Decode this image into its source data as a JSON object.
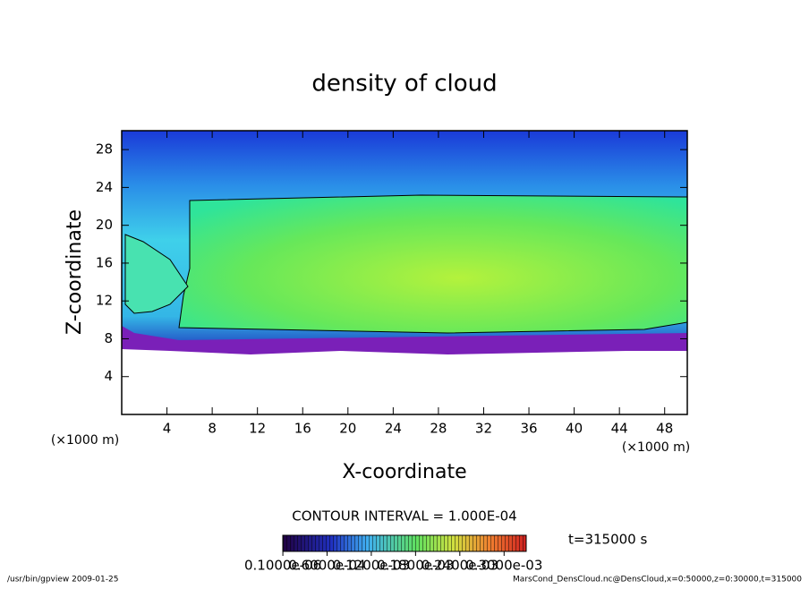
{
  "chart_data": {
    "type": "contour",
    "title": "density of cloud",
    "x_label": "X-coordinate",
    "y_label": "Z-coordinate",
    "x_unit": "(×1000 m)",
    "y_unit": "(×1000 m)",
    "xlim": [
      0,
      50
    ],
    "ylim": [
      0,
      30
    ],
    "xticks": [
      4,
      8,
      12,
      16,
      20,
      24,
      28,
      32,
      36,
      40,
      44,
      48
    ],
    "yticks": [
      4,
      8,
      12,
      16,
      20,
      24,
      28
    ],
    "contour_interval": "CONTOUR INTERVAL = 1.000E-04",
    "time": "t=315000 s",
    "colorbar": {
      "lim": [
        0,
        0.00033
      ],
      "ticks": [
        {
          "value": 1e-07,
          "label": "0.1000e-06"
        },
        {
          "value": 6e-05,
          "label": "0.6000e-04"
        },
        {
          "value": 0.00012,
          "label": "0.1200e-03"
        },
        {
          "value": 0.00018,
          "label": "0.1800e-03"
        },
        {
          "value": 0.00024,
          "label": "0.2400e-03"
        },
        {
          "value": 0.0003,
          "label": "0.3000e-03"
        }
      ]
    },
    "footer_left": "/usr/bin/gpview  2009-01-25",
    "footer_right": "MarsCond_DensCloud.nc@DensCloud,x=0:50000,z=0:30000,t=315000"
  }
}
